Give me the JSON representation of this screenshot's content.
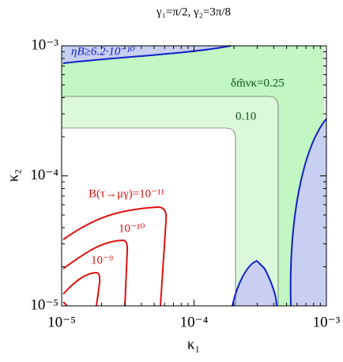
{
  "chart_data": {
    "type": "contour",
    "title": "γ₁=π/2, γ₂=3π/8",
    "xlabel": "κ₁",
    "ylabel": "κ₂",
    "xscale": "log",
    "yscale": "log",
    "xlim": [
      1e-05,
      0.001
    ],
    "ylim": [
      1e-05,
      0.001
    ],
    "xticks": [
      {
        "value": 1e-05,
        "label": "10⁻⁵"
      },
      {
        "value": 0.0001,
        "label": "10⁻⁴"
      },
      {
        "value": 0.001,
        "label": "10⁻³"
      }
    ],
    "yticks": [
      {
        "value": 1e-05,
        "label": "10⁻⁵"
      },
      {
        "value": 0.0001,
        "label": "10⁻⁴"
      },
      {
        "value": 0.001,
        "label": "10⁻³"
      }
    ],
    "annotations": [
      "ηB≥6.2·10⁻¹⁰",
      "δm̃νκ=0.25",
      "0.10",
      "B(τ→μγ)=10⁻¹¹",
      "10⁻¹⁰",
      "10⁻⁹"
    ]
  }
}
